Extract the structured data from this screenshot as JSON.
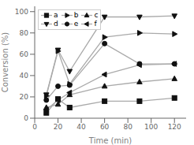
{
  "chart_data": {
    "type": "line",
    "xlabel": "Time (min)",
    "ylabel": "Conversion (%)",
    "x": [
      10,
      20,
      30,
      60,
      90,
      120
    ],
    "series": [
      {
        "name": "a",
        "values": [
          5,
          18,
          10,
          16,
          16,
          19
        ],
        "marker": "square",
        "color": "#111111"
      },
      {
        "name": "b",
        "values": [
          21,
          63,
          32,
          76,
          80,
          79
        ],
        "marker": "triangle-right",
        "color": "#111111"
      },
      {
        "name": "c",
        "values": [
          10,
          13,
          22,
          30,
          34,
          37
        ],
        "marker": "triangle-up",
        "color": "#111111"
      },
      {
        "name": "d",
        "values": [
          22,
          64,
          44,
          95,
          95,
          96
        ],
        "marker": "triangle-down",
        "color": "#111111"
      },
      {
        "name": "e",
        "values": [
          17,
          30,
          31,
          70,
          51,
          51
        ],
        "marker": "circle",
        "color": "#111111"
      },
      {
        "name": "f",
        "values": [
          8,
          17,
          24,
          41,
          50,
          51
        ],
        "marker": "triangle-left",
        "color": "#111111"
      }
    ],
    "color": "#aaaaaa",
    "xlim": [
      0,
      130
    ],
    "ylim": [
      0,
      105
    ],
    "xticks": [
      0,
      20,
      40,
      60,
      80,
      100,
      120
    ],
    "yticks": [
      0,
      20,
      40,
      60,
      80,
      100
    ],
    "legend": "upper left",
    "grid": false
  }
}
